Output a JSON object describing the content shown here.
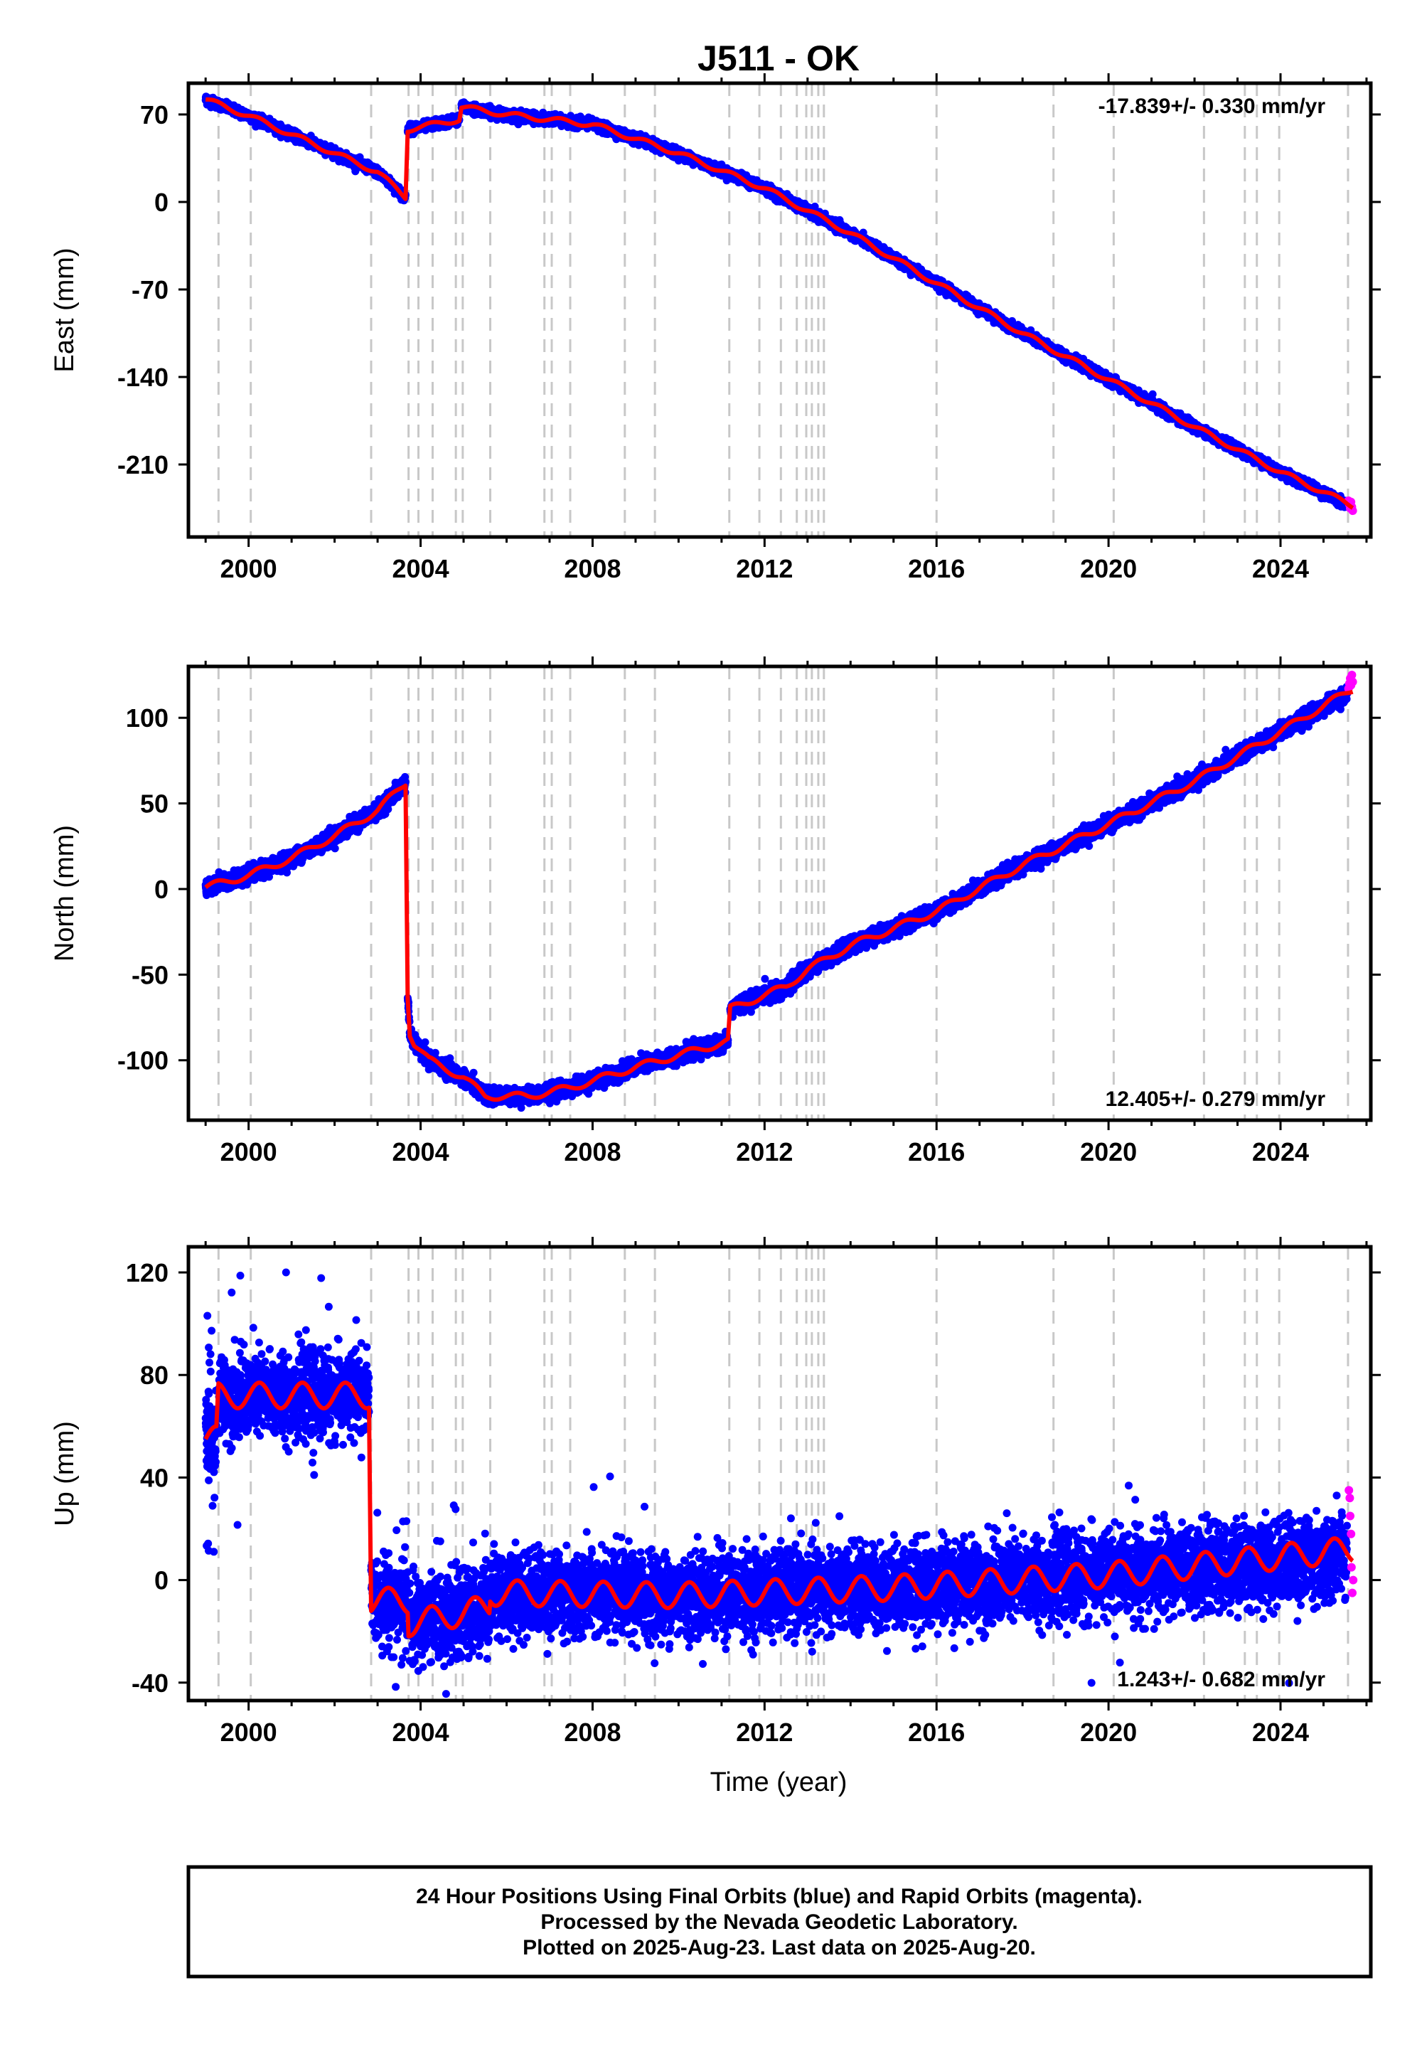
{
  "title": "J511 - OK",
  "xlabel": "Time (year)",
  "colors": {
    "final_orbits": "#0000ff",
    "rapid_orbits": "#ff00ff",
    "model": "#ff0000",
    "event_lines": "#c8c8c8",
    "frame": "#000000"
  },
  "footer": {
    "line1": "24 Hour Positions Using Final Orbits (blue) and Rapid Orbits (magenta).",
    "line2": "Processed by the Nevada Geodetic Laboratory.",
    "line3": "Plotted on 2025-Aug-23. Last data on 2025-Aug-20."
  },
  "event_years": [
    1999.3,
    2000.05,
    2002.85,
    2003.72,
    2003.95,
    2004.28,
    2004.82,
    2004.98,
    2005.62,
    2006.88,
    2007.05,
    2007.48,
    2008.75,
    2009.45,
    2011.18,
    2011.88,
    2012.38,
    2012.75,
    2012.97,
    2013.1,
    2013.25,
    2013.38,
    2016.0,
    2018.72,
    2020.12,
    2022.22,
    2023.17,
    2023.45,
    2023.97,
    2025.57
  ],
  "chart_data": [
    {
      "type": "scatter",
      "panel": "east",
      "ylabel": "East (mm)",
      "ylim": [
        -268,
        95
      ],
      "xlim": [
        1998.6,
        2026.1
      ],
      "xticks": [
        2000,
        2004,
        2008,
        2012,
        2016,
        2020,
        2024
      ],
      "yticks": [
        70,
        0,
        -70,
        -140,
        -210
      ],
      "grid": false,
      "rate_text": "-17.839+/- 0.330 mm/yr",
      "rate_position": "top-right",
      "series": [
        {
          "name": "Final Orbits",
          "color": "#0000ff",
          "noise_mm": 1.8,
          "outliers": 0,
          "x_start": 1999.0,
          "x_end": 2025.55,
          "segments": [
            {
              "x": [
                1999.0,
                2000.0,
                2003.0,
                2003.65
              ],
              "y": [
                82,
                69,
                24,
                4
              ]
            },
            {
              "x": [
                2003.7,
                2004.9
              ],
              "y": [
                58,
                66
              ]
            },
            {
              "x": [
                2004.95,
                2006.0,
                2008.0,
                2010.0,
                2012.0,
                2014.0,
                2016.0,
                2018.0,
                2020.0,
                2022.0,
                2024.0,
                2025.55
              ],
              "y": [
                76,
                70,
                62,
                39,
                11,
                -25,
                -65,
                -105,
                -142,
                -180,
                -216,
                -242
              ]
            }
          ]
        },
        {
          "name": "Rapid Orbits",
          "color": "#ff00ff",
          "noise_mm": 2.5,
          "points": [
            [
              2025.58,
              -239
            ],
            [
              2025.6,
              -242
            ],
            [
              2025.62,
              -245
            ],
            [
              2025.64,
              -240
            ],
            [
              2025.66,
              -244
            ],
            [
              2025.68,
              -247
            ]
          ]
        },
        {
          "name": "Model",
          "color": "#ff0000",
          "seasonal_mm": 2,
          "segments": [
            {
              "x": [
                1999.0,
                2000.0,
                2003.0,
                2003.65
              ],
              "y": [
                82,
                69,
                24,
                4
              ]
            },
            {
              "x": [
                2003.7,
                2004.9
              ],
              "y": [
                58,
                66
              ]
            },
            {
              "x": [
                2004.95,
                2006.0,
                2008.0,
                2010.0,
                2012.0,
                2014.0,
                2016.0,
                2018.0,
                2020.0,
                2022.0,
                2024.0,
                2025.68
              ],
              "y": [
                76,
                70,
                62,
                39,
                11,
                -25,
                -65,
                -105,
                -142,
                -180,
                -216,
                -243
              ]
            }
          ]
        }
      ]
    },
    {
      "type": "scatter",
      "panel": "north",
      "ylabel": "North (mm)",
      "ylim": [
        -135,
        130
      ],
      "xlim": [
        1998.6,
        2026.1
      ],
      "xticks": [
        2000,
        2004,
        2008,
        2012,
        2016,
        2020,
        2024
      ],
      "yticks": [
        100,
        50,
        0,
        -50,
        -100
      ],
      "grid": false,
      "rate_text": "12.405+/- 0.279 mm/yr",
      "rate_position": "bottom-right",
      "series": [
        {
          "name": "Final Orbits",
          "color": "#0000ff",
          "noise_mm": 2.2,
          "outliers": 0,
          "x_start": 1999.0,
          "x_end": 2025.55,
          "segments": [
            {
              "x": [
                1999.0,
                2000.0,
                2001.0,
                2002.0,
                2003.0,
                2003.65
              ],
              "y": [
                1,
                8,
                18,
                31,
                46,
                62
              ]
            },
            {
              "x": [
                2003.7,
                2003.75,
                2003.85,
                2004.2,
                2005.0,
                2005.5,
                2006.5,
                2007.5,
                2009.0,
                2011.15
              ],
              "y": [
                -62,
                -84,
                -90,
                -100,
                -110,
                -121,
                -121,
                -116,
                -104,
                -89
              ]
            },
            {
              "x": [
                2011.2,
                2012.5,
                2013.0,
                2014.0,
                2016.0,
                2018.0,
                2020.0,
                2022.0,
                2024.0,
                2025.55
              ],
              "y": [
                -70,
                -57,
                -47,
                -33,
                -13,
                14,
                38,
                63,
                92,
                114
              ]
            }
          ]
        },
        {
          "name": "Rapid Orbits",
          "color": "#ff00ff",
          "noise_mm": 2.5,
          "points": [
            [
              2025.58,
              117
            ],
            [
              2025.6,
              120
            ],
            [
              2025.62,
              123
            ],
            [
              2025.64,
              119
            ],
            [
              2025.66,
              125
            ],
            [
              2025.68,
              121
            ]
          ]
        },
        {
          "name": "Model",
          "color": "#ff0000",
          "seasonal_mm": 2,
          "segments": [
            {
              "x": [
                1999.0,
                2000.0,
                2001.0,
                2002.0,
                2003.0,
                2003.65
              ],
              "y": [
                1,
                8,
                18,
                31,
                46,
                62
              ]
            },
            {
              "x": [
                2003.7,
                2003.75,
                2003.85,
                2004.2,
                2005.0,
                2005.5,
                2006.5,
                2007.5,
                2009.0,
                2011.15
              ],
              "y": [
                -62,
                -84,
                -90,
                -100,
                -110,
                -121,
                -121,
                -116,
                -104,
                -89
              ]
            },
            {
              "x": [
                2011.2,
                2012.5,
                2013.0,
                2014.0,
                2016.0,
                2018.0,
                2020.0,
                2022.0,
                2024.0,
                2025.68
              ],
              "y": [
                -70,
                -57,
                -47,
                -33,
                -13,
                14,
                38,
                63,
                92,
                117
              ]
            }
          ]
        }
      ]
    },
    {
      "type": "scatter",
      "panel": "up",
      "ylabel": "Up (mm)",
      "ylim": [
        -47,
        130
      ],
      "xlim": [
        1998.6,
        2026.1
      ],
      "xticks": [
        2000,
        2004,
        2008,
        2012,
        2016,
        2020,
        2024
      ],
      "yticks": [
        120,
        80,
        40,
        0,
        -40
      ],
      "grid": false,
      "rate_text": "1.243+/- 0.682 mm/yr",
      "rate_position": "bottom-right",
      "series": [
        {
          "name": "Final Orbits",
          "color": "#0000ff",
          "noise_mm": 8,
          "outliers": 45,
          "x_start": 1999.0,
          "x_end": 2025.55,
          "segments": [
            {
              "x": [
                1999.0,
                1999.25
              ],
              "y": [
                55,
                55
              ]
            },
            {
              "x": [
                1999.3,
                2002.8
              ],
              "y": [
                72,
                72
              ]
            },
            {
              "x": [
                2002.85,
                2003.7
              ],
              "y": [
                -8,
                -8
              ]
            },
            {
              "x": [
                2003.72,
                2004.3,
                2005.0,
                2005.6
              ],
              "y": [
                -17,
                -15,
                -13,
                -10
              ]
            },
            {
              "x": [
                2005.62,
                2010.0,
                2015.0,
                2020.0,
                2025.55
              ],
              "y": [
                -5,
                -6,
                -3,
                2,
                9
              ]
            }
          ]
        },
        {
          "name": "Rapid Orbits",
          "color": "#ff00ff",
          "noise_mm": 2,
          "points": [
            [
              2025.59,
              35
            ],
            [
              2025.61,
              32
            ],
            [
              2025.62,
              25
            ],
            [
              2025.64,
              18
            ],
            [
              2025.65,
              5
            ],
            [
              2025.67,
              -5
            ],
            [
              2025.69,
              0
            ]
          ]
        },
        {
          "name": "Model",
          "color": "#ff0000",
          "seasonal_mm": 5,
          "segments": [
            {
              "x": [
                1999.0,
                1999.25
              ],
              "y": [
                55,
                55
              ]
            },
            {
              "x": [
                1999.3,
                2002.8
              ],
              "y": [
                72,
                72
              ]
            },
            {
              "x": [
                2002.85,
                2003.7
              ],
              "y": [
                -8,
                -8
              ]
            },
            {
              "x": [
                2003.72,
                2004.3,
                2005.0,
                2005.6
              ],
              "y": [
                -17,
                -15,
                -13,
                -10
              ]
            },
            {
              "x": [
                2005.62,
                2010.0,
                2015.0,
                2020.0,
                2025.68
              ],
              "y": [
                -5,
                -6,
                -3,
                2,
                12
              ]
            }
          ]
        }
      ]
    }
  ]
}
